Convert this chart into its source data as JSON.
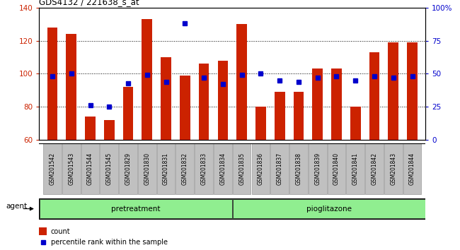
{
  "title": "GDS4132 / 221638_s_at",
  "samples": [
    "GSM201542",
    "GSM201543",
    "GSM201544",
    "GSM201545",
    "GSM201829",
    "GSM201830",
    "GSM201831",
    "GSM201832",
    "GSM201833",
    "GSM201834",
    "GSM201835",
    "GSM201836",
    "GSM201837",
    "GSM201838",
    "GSM201839",
    "GSM201840",
    "GSM201841",
    "GSM201842",
    "GSM201843",
    "GSM201844"
  ],
  "counts": [
    128,
    124,
    74,
    72,
    92,
    133,
    110,
    99,
    106,
    108,
    130,
    80,
    89,
    89,
    103,
    103,
    80,
    113,
    119,
    119
  ],
  "percentiles": [
    48,
    50,
    26,
    25,
    43,
    49,
    44,
    88,
    47,
    42,
    49,
    50,
    45,
    44,
    47,
    48,
    45,
    48,
    47,
    48
  ],
  "ylim_left": [
    60,
    140
  ],
  "ylim_right": [
    0,
    100
  ],
  "bar_color": "#CC2200",
  "dot_color": "#0000CC",
  "bar_width": 0.55,
  "label_bg_color": "#C0C0C0",
  "label_border_color": "#888888",
  "green_color": "#90EE90",
  "plot_bg_color": "#FFFFFF",
  "title_str": "GDS4132 / 221638_s_at",
  "agent_label": "agent",
  "group1_label": "pretreatment",
  "group2_label": "pioglitazone",
  "legend_count": "count",
  "legend_percentile": "percentile rank within the sample",
  "yticks_left": [
    60,
    80,
    100,
    120,
    140
  ],
  "ytick_labels_right": [
    "0",
    "25",
    "50",
    "75",
    "100%"
  ]
}
